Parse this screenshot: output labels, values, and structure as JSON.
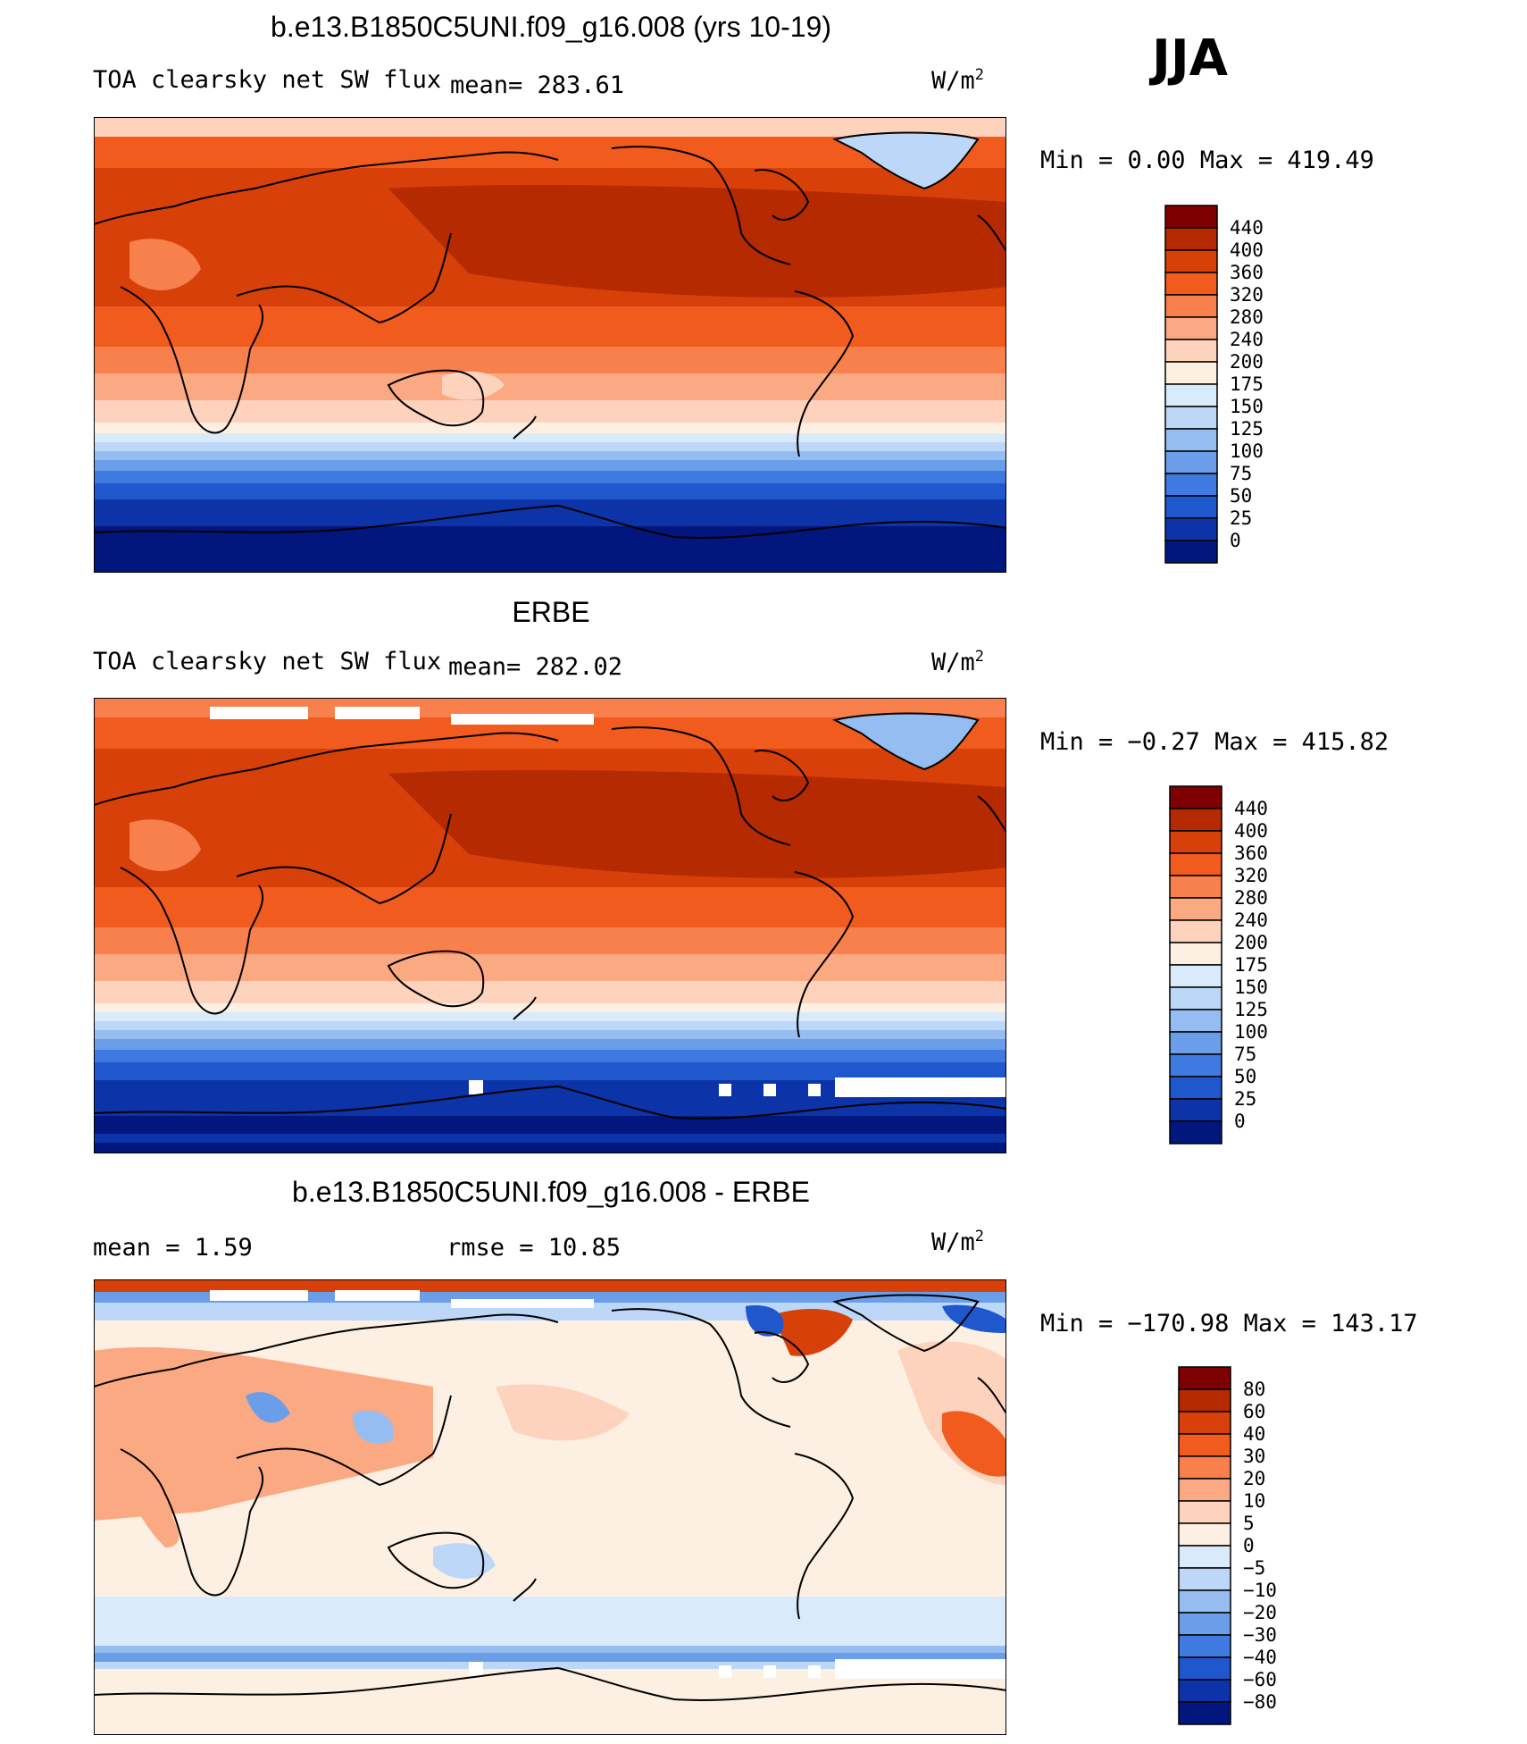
{
  "season": "JJA",
  "panels": [
    {
      "title": "b.e13.B1850C5UNI.f09_g16.008 (yrs 10-19)",
      "left_label": "TOA clearsky net SW flux",
      "mean_label": "mean= 283.61",
      "unit": "W/m",
      "unit_sup": "2",
      "minmax": "Min =    0.00 Max = 419.49",
      "kind": "field",
      "colorbar": {
        "labels": [
          "440",
          "400",
          "360",
          "320",
          "280",
          "240",
          "200",
          "175",
          "150",
          "125",
          "100",
          "75",
          "50",
          "25",
          "0"
        ],
        "colors": [
          "#7f0000",
          "#b52a00",
          "#d8400a",
          "#f15b1e",
          "#f7804c",
          "#fba983",
          "#fdd3bd",
          "#fdf0e2",
          "#d9ebfb",
          "#bcd7f8",
          "#96bdf1",
          "#6a9ee8",
          "#3f7ae0",
          "#1f57cc",
          "#0c34a8",
          "#02177d"
        ]
      }
    },
    {
      "title": "ERBE",
      "left_label": "TOA clearsky net SW flux",
      "mean_label": "mean= 282.02",
      "unit": "W/m",
      "unit_sup": "2",
      "minmax": "Min =  −0.27 Max = 415.82",
      "kind": "field",
      "colorbar": {
        "labels": [
          "440",
          "400",
          "360",
          "320",
          "280",
          "240",
          "200",
          "175",
          "150",
          "125",
          "100",
          "75",
          "50",
          "25",
          "0"
        ],
        "colors": [
          "#7f0000",
          "#b52a00",
          "#d8400a",
          "#f15b1e",
          "#f7804c",
          "#fba983",
          "#fdd3bd",
          "#fdf0e2",
          "#d9ebfb",
          "#bcd7f8",
          "#96bdf1",
          "#6a9ee8",
          "#3f7ae0",
          "#1f57cc",
          "#0c34a8",
          "#02177d"
        ]
      }
    },
    {
      "title": "b.e13.B1850C5UNI.f09_g16.008 - ERBE",
      "mean_label": "mean =    1.59",
      "rmse_label": "rmse =   10.85",
      "unit": "W/m",
      "unit_sup": "2",
      "minmax": "Min = −170.98 Max = 143.17",
      "kind": "diff",
      "colorbar": {
        "labels": [
          "80",
          "60",
          "40",
          "30",
          "20",
          "10",
          "5",
          "0",
          "−5",
          "−10",
          "−20",
          "−30",
          "−40",
          "−60",
          "−80"
        ],
        "colors": [
          "#7f0000",
          "#b52a00",
          "#d8400a",
          "#f15b1e",
          "#f7804c",
          "#fba983",
          "#fdd3bd",
          "#fdf0e2",
          "#d9ebfb",
          "#bcd7f8",
          "#96bdf1",
          "#6a9ee8",
          "#3f7ae0",
          "#1f57cc",
          "#0c34a8",
          "#02177d"
        ]
      }
    }
  ]
}
